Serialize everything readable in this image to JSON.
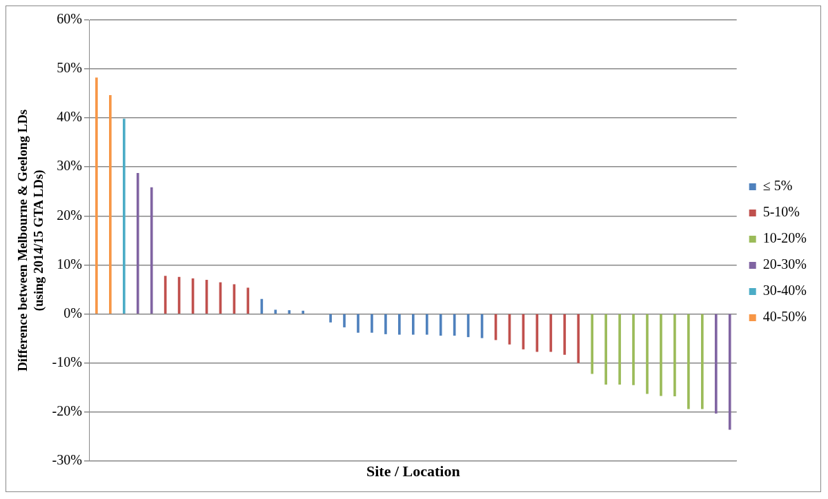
{
  "chart_data": {
    "type": "bar",
    "xlabel": "Site / Location",
    "ylabel": "Difference between Melbourne & Geelong LDs\n(using 2014/15 GTA LDs)",
    "categories": [
      null,
      null,
      null,
      null,
      null,
      null,
      null,
      null,
      null,
      null,
      null,
      null,
      null,
      null,
      null,
      null,
      null,
      null,
      null,
      null,
      null,
      null,
      null,
      null,
      null,
      null,
      null,
      null,
      null,
      null,
      null,
      null,
      null,
      null,
      null,
      null,
      null,
      null,
      null,
      null,
      null,
      null,
      null,
      null,
      null,
      null,
      null
    ],
    "series": [
      {
        "name": "≤ 5%",
        "color": "#4f81bd",
        "values": [
          null,
          null,
          null,
          null,
          null,
          null,
          null,
          null,
          null,
          null,
          null,
          null,
          3.0,
          0.8,
          0.7,
          0.6,
          null,
          -1.7,
          -2.7,
          -3.8,
          -3.8,
          -4.1,
          -4.2,
          -4.2,
          -4.2,
          -4.4,
          -4.4,
          -4.7,
          -4.9,
          null,
          null,
          null,
          null,
          null,
          null,
          null,
          null,
          null,
          null,
          null,
          null,
          null,
          null,
          null,
          null,
          null,
          null
        ]
      },
      {
        "name": "5-10%",
        "color": "#c0504d",
        "values": [
          null,
          null,
          null,
          null,
          null,
          7.7,
          7.5,
          7.2,
          6.9,
          6.4,
          6.0,
          5.3,
          null,
          null,
          null,
          null,
          null,
          null,
          null,
          null,
          null,
          null,
          null,
          null,
          null,
          null,
          null,
          null,
          null,
          -5.3,
          -6.2,
          -7.2,
          -7.7,
          -7.7,
          -8.3,
          -10.0,
          null,
          null,
          null,
          null,
          null,
          null,
          null,
          null,
          null,
          null,
          null
        ]
      },
      {
        "name": "10-20%",
        "color": "#9bbb59",
        "values": [
          null,
          null,
          null,
          null,
          null,
          null,
          null,
          null,
          null,
          null,
          null,
          null,
          null,
          null,
          null,
          null,
          null,
          null,
          null,
          null,
          null,
          null,
          null,
          null,
          null,
          null,
          null,
          null,
          null,
          null,
          null,
          null,
          null,
          null,
          null,
          null,
          -12.2,
          -14.4,
          -14.4,
          -14.5,
          -16.3,
          -16.7,
          -16.8,
          -19.4,
          -19.4,
          null,
          null
        ]
      },
      {
        "name": "20-30%",
        "color": "#8064a2",
        "values": [
          null,
          null,
          null,
          28.7,
          25.8,
          null,
          null,
          null,
          null,
          null,
          null,
          null,
          null,
          null,
          null,
          null,
          null,
          null,
          null,
          null,
          null,
          null,
          null,
          null,
          null,
          null,
          null,
          null,
          null,
          null,
          null,
          null,
          null,
          null,
          null,
          null,
          null,
          null,
          null,
          null,
          null,
          null,
          null,
          null,
          null,
          -20.3,
          -23.6
        ]
      },
      {
        "name": "30-40%",
        "color": "#4bacc6",
        "values": [
          null,
          null,
          39.8,
          null,
          null,
          null,
          null,
          null,
          null,
          null,
          null,
          null,
          null,
          null,
          null,
          null,
          null,
          null,
          null,
          null,
          null,
          null,
          null,
          null,
          null,
          null,
          null,
          null,
          null,
          null,
          null,
          null,
          null,
          null,
          null,
          null,
          null,
          null,
          null,
          null,
          null,
          null,
          null,
          null,
          null,
          null,
          null
        ]
      },
      {
        "name": "40-50%",
        "color": "#f79646",
        "values": [
          48.2,
          44.6,
          null,
          null,
          null,
          null,
          null,
          null,
          null,
          null,
          null,
          null,
          null,
          null,
          null,
          null,
          null,
          null,
          null,
          null,
          null,
          null,
          null,
          null,
          null,
          null,
          null,
          null,
          null,
          null,
          null,
          null,
          null,
          null,
          null,
          null,
          null,
          null,
          null,
          null,
          null,
          null,
          null,
          null,
          null,
          null,
          null
        ]
      }
    ],
    "ylim": [
      -30,
      60
    ],
    "yticks": [
      {
        "value": -30,
        "label": "-30%"
      },
      {
        "value": -20,
        "label": "-20%"
      },
      {
        "value": -10,
        "label": "-10%"
      },
      {
        "value": 0,
        "label": "0%"
      },
      {
        "value": 10,
        "label": "10%"
      },
      {
        "value": 20,
        "label": "20%"
      },
      {
        "value": 30,
        "label": "30%"
      },
      {
        "value": 40,
        "label": "40%"
      },
      {
        "value": 50,
        "label": "50%"
      },
      {
        "value": 60,
        "label": "60%"
      }
    ],
    "grid": "y",
    "legend": "right"
  }
}
